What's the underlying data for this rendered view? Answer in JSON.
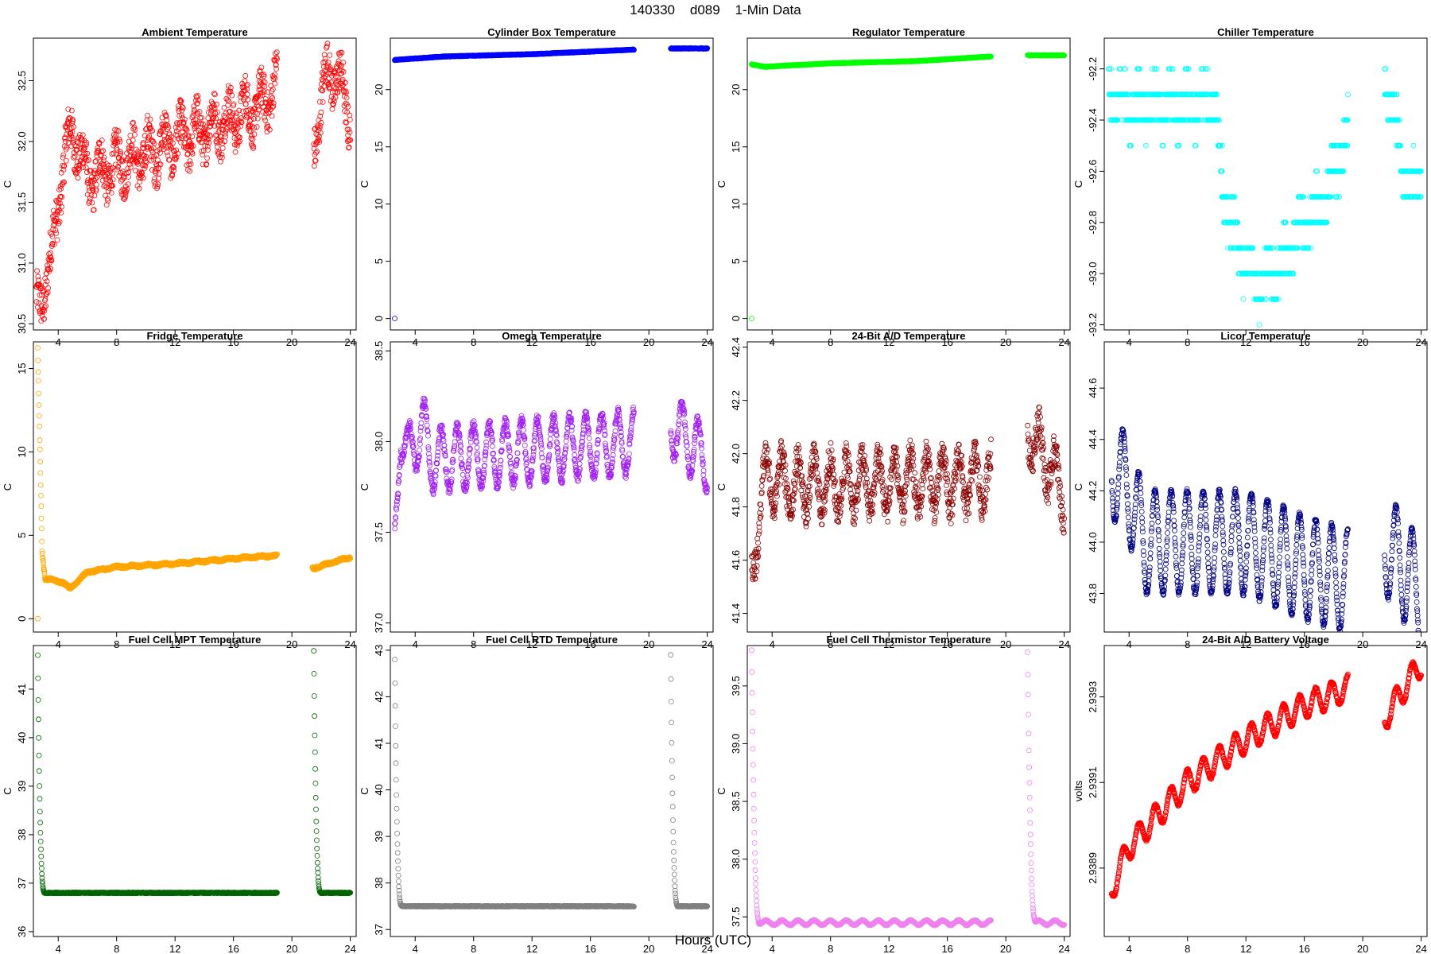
{
  "figure": {
    "title": "140330    d089    1-Min Data",
    "xlabel": "Hours (UTC)"
  },
  "chart_data": [
    {
      "type": "scatter",
      "title": "Ambient Temperature",
      "ylabel": "C",
      "color": "#ff0000",
      "xlim": [
        2.3,
        24.4
      ],
      "ylim": [
        30.45,
        32.85
      ],
      "xticks": [
        4,
        8,
        12,
        16,
        20,
        24
      ],
      "yticks": [
        "30.5",
        "31.0",
        "31.5",
        "32.0",
        "32.5"
      ],
      "model": {
        "segments": [
          [
            2.5,
            5.0
          ],
          [
            5.0,
            19.0
          ],
          [
            21.5,
            24.0
          ]
        ],
        "base": [
          [
            2.5,
            30.6
          ],
          [
            3.5,
            31.0
          ],
          [
            4.3,
            31.8
          ],
          [
            5.0,
            32.1
          ],
          [
            6.0,
            31.7
          ],
          [
            8.0,
            31.8
          ],
          [
            10.0,
            31.9
          ],
          [
            12.0,
            32.0
          ],
          [
            14.0,
            32.1
          ],
          [
            16.0,
            32.2
          ],
          [
            18.0,
            32.3
          ],
          [
            19.0,
            32.5
          ],
          [
            21.5,
            32.0
          ],
          [
            22.5,
            32.6
          ],
          [
            23.2,
            32.5
          ],
          [
            24.0,
            32.2
          ]
        ],
        "noise": 0.18,
        "wave": {
          "amp": 0.15,
          "period": 1.1
        }
      }
    },
    {
      "type": "scatter",
      "title": "Cylinder Box Temperature",
      "ylabel": "C",
      "color": "#0000ff",
      "xlim": [
        2.3,
        24.4
      ],
      "ylim": [
        -1.0,
        24.5
      ],
      "xticks": [
        4,
        8,
        12,
        16,
        20,
        24
      ],
      "yticks": [
        "0",
        "5",
        "10",
        "15",
        "20"
      ],
      "model": {
        "segments": [
          [
            2.6,
            19.0
          ],
          [
            21.5,
            24.0
          ]
        ],
        "base": [
          [
            2.6,
            22.6
          ],
          [
            6.0,
            22.9
          ],
          [
            12.0,
            23.1
          ],
          [
            19.0,
            23.5
          ],
          [
            21.5,
            23.6
          ],
          [
            24.0,
            23.6
          ]
        ],
        "noise": 0.03,
        "extra": [
          [
            2.6,
            0.0
          ]
        ]
      }
    },
    {
      "type": "scatter",
      "title": "Regulator Temperature",
      "ylabel": "C",
      "color": "#00ff00",
      "xlim": [
        2.3,
        24.4
      ],
      "ylim": [
        -1.0,
        24.5
      ],
      "xticks": [
        4,
        8,
        12,
        16,
        20,
        24
      ],
      "yticks": [
        "0",
        "5",
        "10",
        "15",
        "20"
      ],
      "model": {
        "segments": [
          [
            2.6,
            19.0
          ],
          [
            21.5,
            24.0
          ]
        ],
        "base": [
          [
            2.6,
            22.2
          ],
          [
            3.5,
            22.0
          ],
          [
            8.0,
            22.3
          ],
          [
            14.0,
            22.5
          ],
          [
            19.0,
            22.9
          ],
          [
            21.5,
            23.0
          ],
          [
            24.0,
            23.0
          ]
        ],
        "noise": 0.03,
        "extra": [
          [
            2.6,
            0.0
          ]
        ]
      }
    },
    {
      "type": "scatter",
      "title": "Chiller Temperature",
      "ylabel": "C",
      "color": "#00ffff",
      "xlim": [
        2.3,
        24.4
      ],
      "ylim": [
        -93.22,
        -92.08
      ],
      "xticks": [
        4,
        8,
        12,
        16,
        20,
        24
      ],
      "yticks": [
        "-93.2",
        "-93.0",
        "-92.8",
        "-92.6",
        "-92.4",
        "-92.2"
      ],
      "model": {
        "segments": [
          [
            2.6,
            19.0
          ],
          [
            21.5,
            24.0
          ]
        ],
        "base": [
          [
            2.6,
            -92.3
          ],
          [
            4.0,
            -92.35
          ],
          [
            8.0,
            -92.35
          ],
          [
            9.8,
            -92.3
          ],
          [
            10.5,
            -92.7
          ],
          [
            11.5,
            -92.9
          ],
          [
            13.0,
            -93.05
          ],
          [
            14.5,
            -92.95
          ],
          [
            16.0,
            -92.8
          ],
          [
            17.5,
            -92.7
          ],
          [
            19.0,
            -92.45
          ],
          [
            21.5,
            -92.2
          ],
          [
            22.5,
            -92.5
          ],
          [
            23.2,
            -92.7
          ],
          [
            24.0,
            -92.6
          ]
        ],
        "noise": 0.08,
        "quant": 0.1,
        "wave": {
          "amp": 0.05,
          "period": 1.1
        }
      }
    },
    {
      "type": "scatter",
      "title": "Fridge Temperature",
      "ylabel": "C",
      "color": "#ffa500",
      "xlim": [
        2.3,
        24.4
      ],
      "ylim": [
        -0.8,
        16.6
      ],
      "xticks": [
        4,
        8,
        12,
        16,
        20,
        24
      ],
      "yticks": [
        "0",
        "5",
        "10",
        "15"
      ],
      "model": {
        "segments": [
          [
            2.6,
            19.0
          ],
          [
            21.4,
            24.0
          ]
        ],
        "base": [
          [
            2.6,
            16.2
          ],
          [
            2.9,
            4.0
          ],
          [
            3.1,
            2.4
          ],
          [
            4.3,
            2.2
          ],
          [
            4.8,
            1.8
          ],
          [
            6.0,
            2.8
          ],
          [
            8.0,
            3.1
          ],
          [
            12.0,
            3.3
          ],
          [
            16.0,
            3.6
          ],
          [
            19.0,
            3.8
          ],
          [
            21.4,
            3.0
          ],
          [
            24.0,
            3.7
          ]
        ],
        "noise": 0.08,
        "wave": {
          "amp": 0.04,
          "period": 1.1
        },
        "extra": [
          [
            2.6,
            0.0
          ]
        ]
      }
    },
    {
      "type": "scatter",
      "title": "Omega Temperature",
      "ylabel": "C",
      "color": "#a020f0",
      "xlim": [
        2.3,
        24.4
      ],
      "ylim": [
        36.95,
        38.55
      ],
      "xticks": [
        4,
        8,
        12,
        16,
        20,
        24
      ],
      "yticks": [
        "37.0",
        "37.5",
        "38.0",
        "38.5"
      ],
      "model": {
        "segments": [
          [
            2.6,
            19.0
          ],
          [
            21.5,
            24.0
          ]
        ],
        "base": [
          [
            2.6,
            37.4
          ],
          [
            3.0,
            38.1
          ],
          [
            3.5,
            37.9
          ],
          [
            4.5,
            38.1
          ],
          [
            5.0,
            37.9
          ],
          [
            19.0,
            38.0
          ],
          [
            21.5,
            38.1
          ],
          [
            24.0,
            37.9
          ]
        ],
        "noise": 0.03,
        "wave": {
          "amp": 0.17,
          "period": 1.1
        }
      }
    },
    {
      "type": "scatter",
      "title": "24-Bit A/D Temperature",
      "ylabel": "C",
      "color": "#8b0000",
      "xlim": [
        2.3,
        24.4
      ],
      "ylim": [
        41.33,
        42.42
      ],
      "xticks": [
        4,
        8,
        12,
        16,
        20,
        24
      ],
      "yticks": [
        "41.4",
        "41.6",
        "41.8",
        "42.0",
        "42.2",
        "42.4"
      ],
      "model": {
        "segments": [
          [
            2.6,
            19.0
          ],
          [
            21.5,
            24.0
          ]
        ],
        "base": [
          [
            2.6,
            41.5
          ],
          [
            3.3,
            41.9
          ],
          [
            4.0,
            41.9
          ],
          [
            4.5,
            41.9
          ],
          [
            5.0,
            41.88
          ],
          [
            19.0,
            41.9
          ],
          [
            21.5,
            42.1
          ],
          [
            24.0,
            41.85
          ]
        ],
        "noise": 0.06,
        "wave": {
          "amp": 0.1,
          "period": 1.1
        }
      }
    },
    {
      "type": "scatter",
      "title": "Licor Temperature",
      "ylabel": "C",
      "color": "#000080",
      "xlim": [
        2.3,
        24.4
      ],
      "ylim": [
        43.65,
        44.78
      ],
      "xticks": [
        4,
        8,
        12,
        16,
        20,
        24
      ],
      "yticks": [
        "43.8",
        "44.0",
        "44.2",
        "44.4",
        "44.6"
      ],
      "model": {
        "segments": [
          [
            2.8,
            19.0
          ],
          [
            21.5,
            24.0
          ]
        ],
        "base": [
          [
            2.8,
            44.3
          ],
          [
            4.0,
            44.2
          ],
          [
            5.0,
            44.0
          ],
          [
            8.0,
            44.0
          ],
          [
            12.0,
            44.0
          ],
          [
            16.0,
            43.9
          ],
          [
            19.0,
            43.85
          ],
          [
            21.5,
            44.0
          ],
          [
            24.0,
            43.8
          ]
        ],
        "noise": 0.01,
        "wave": {
          "amp": 0.2,
          "period": 1.1
        }
      }
    },
    {
      "type": "scatter",
      "title": "Fuel Cell MPT Temperature",
      "ylabel": "C",
      "color": "#006400",
      "xlim": [
        2.3,
        24.4
      ],
      "ylim": [
        35.9,
        41.9
      ],
      "xticks": [
        4,
        8,
        12,
        16,
        20,
        24
      ],
      "yticks": [
        "36",
        "37",
        "38",
        "39",
        "40",
        "41"
      ],
      "model": {
        "segments": [
          [
            2.6,
            19.0
          ],
          [
            21.5,
            24.0
          ]
        ],
        "base": [
          [
            2.6,
            36.8
          ],
          [
            24.0,
            36.8
          ]
        ],
        "noise": 0.01,
        "spikes": [
          {
            "t0": 2.6,
            "peak": 41.7,
            "width": 0.5
          },
          {
            "t0": 21.5,
            "peak": 41.8,
            "width": 0.5
          }
        ]
      }
    },
    {
      "type": "scatter",
      "title": "Fuel Cell RTD Temperature",
      "ylabel": "C",
      "color": "#808080",
      "xlim": [
        2.3,
        24.4
      ],
      "ylim": [
        36.85,
        43.1
      ],
      "xticks": [
        4,
        8,
        12,
        16,
        20,
        24
      ],
      "yticks": [
        "37",
        "38",
        "39",
        "40",
        "41",
        "42",
        "43"
      ],
      "model": {
        "segments": [
          [
            2.6,
            19.0
          ],
          [
            21.5,
            24.0
          ]
        ],
        "base": [
          [
            2.6,
            37.5
          ],
          [
            24.0,
            37.5
          ]
        ],
        "noise": 0.01,
        "spikes": [
          {
            "t0": 2.6,
            "peak": 42.8,
            "width": 0.5
          },
          {
            "t0": 21.5,
            "peak": 42.9,
            "width": 0.5
          }
        ]
      }
    },
    {
      "type": "scatter",
      "title": "Fuel Cell Thermistor Temperature",
      "ylabel": "C",
      "color": "#ee82ee",
      "xlim": [
        2.3,
        24.4
      ],
      "ylim": [
        37.33,
        39.85
      ],
      "xticks": [
        4,
        8,
        12,
        16,
        20,
        24
      ],
      "yticks": [
        "37.5",
        "38.0",
        "38.5",
        "39.0",
        "39.5"
      ],
      "model": {
        "segments": [
          [
            2.6,
            19.0
          ],
          [
            21.5,
            24.0
          ]
        ],
        "base": [
          [
            2.6,
            37.45
          ],
          [
            24.0,
            37.45
          ]
        ],
        "noise": 0.005,
        "wave": {
          "amp": 0.02,
          "period": 1.1
        },
        "spikes": [
          {
            "t0": 2.6,
            "peak": 39.8,
            "width": 0.6
          },
          {
            "t0": 21.5,
            "peak": 39.8,
            "width": 0.6
          }
        ]
      }
    },
    {
      "type": "scatter",
      "title": "24-Bit A/D Battery Voltage",
      "ylabel": "volts",
      "color": "#ff0000",
      "xlim": [
        2.3,
        24.4
      ],
      "ylim": [
        2.93874,
        2.93942
      ],
      "xticks": [
        4,
        8,
        12,
        16,
        20,
        24
      ],
      "yticks": [
        "2.9389",
        "2.9391",
        "2.9393"
      ],
      "model": {
        "segments": [
          [
            2.8,
            19.0
          ],
          [
            21.5,
            24.0
          ]
        ],
        "base": [
          [
            2.8,
            2.93885
          ],
          [
            4.0,
            2.93895
          ],
          [
            8.0,
            2.9391
          ],
          [
            12.0,
            2.9392
          ],
          [
            16.0,
            2.93928
          ],
          [
            19.0,
            2.93932
          ],
          [
            21.5,
            2.93925
          ],
          [
            24.0,
            2.93938
          ]
        ],
        "noise": 3e-06,
        "wave": {
          "amp": 3e-05,
          "period": 1.1
        }
      }
    }
  ]
}
